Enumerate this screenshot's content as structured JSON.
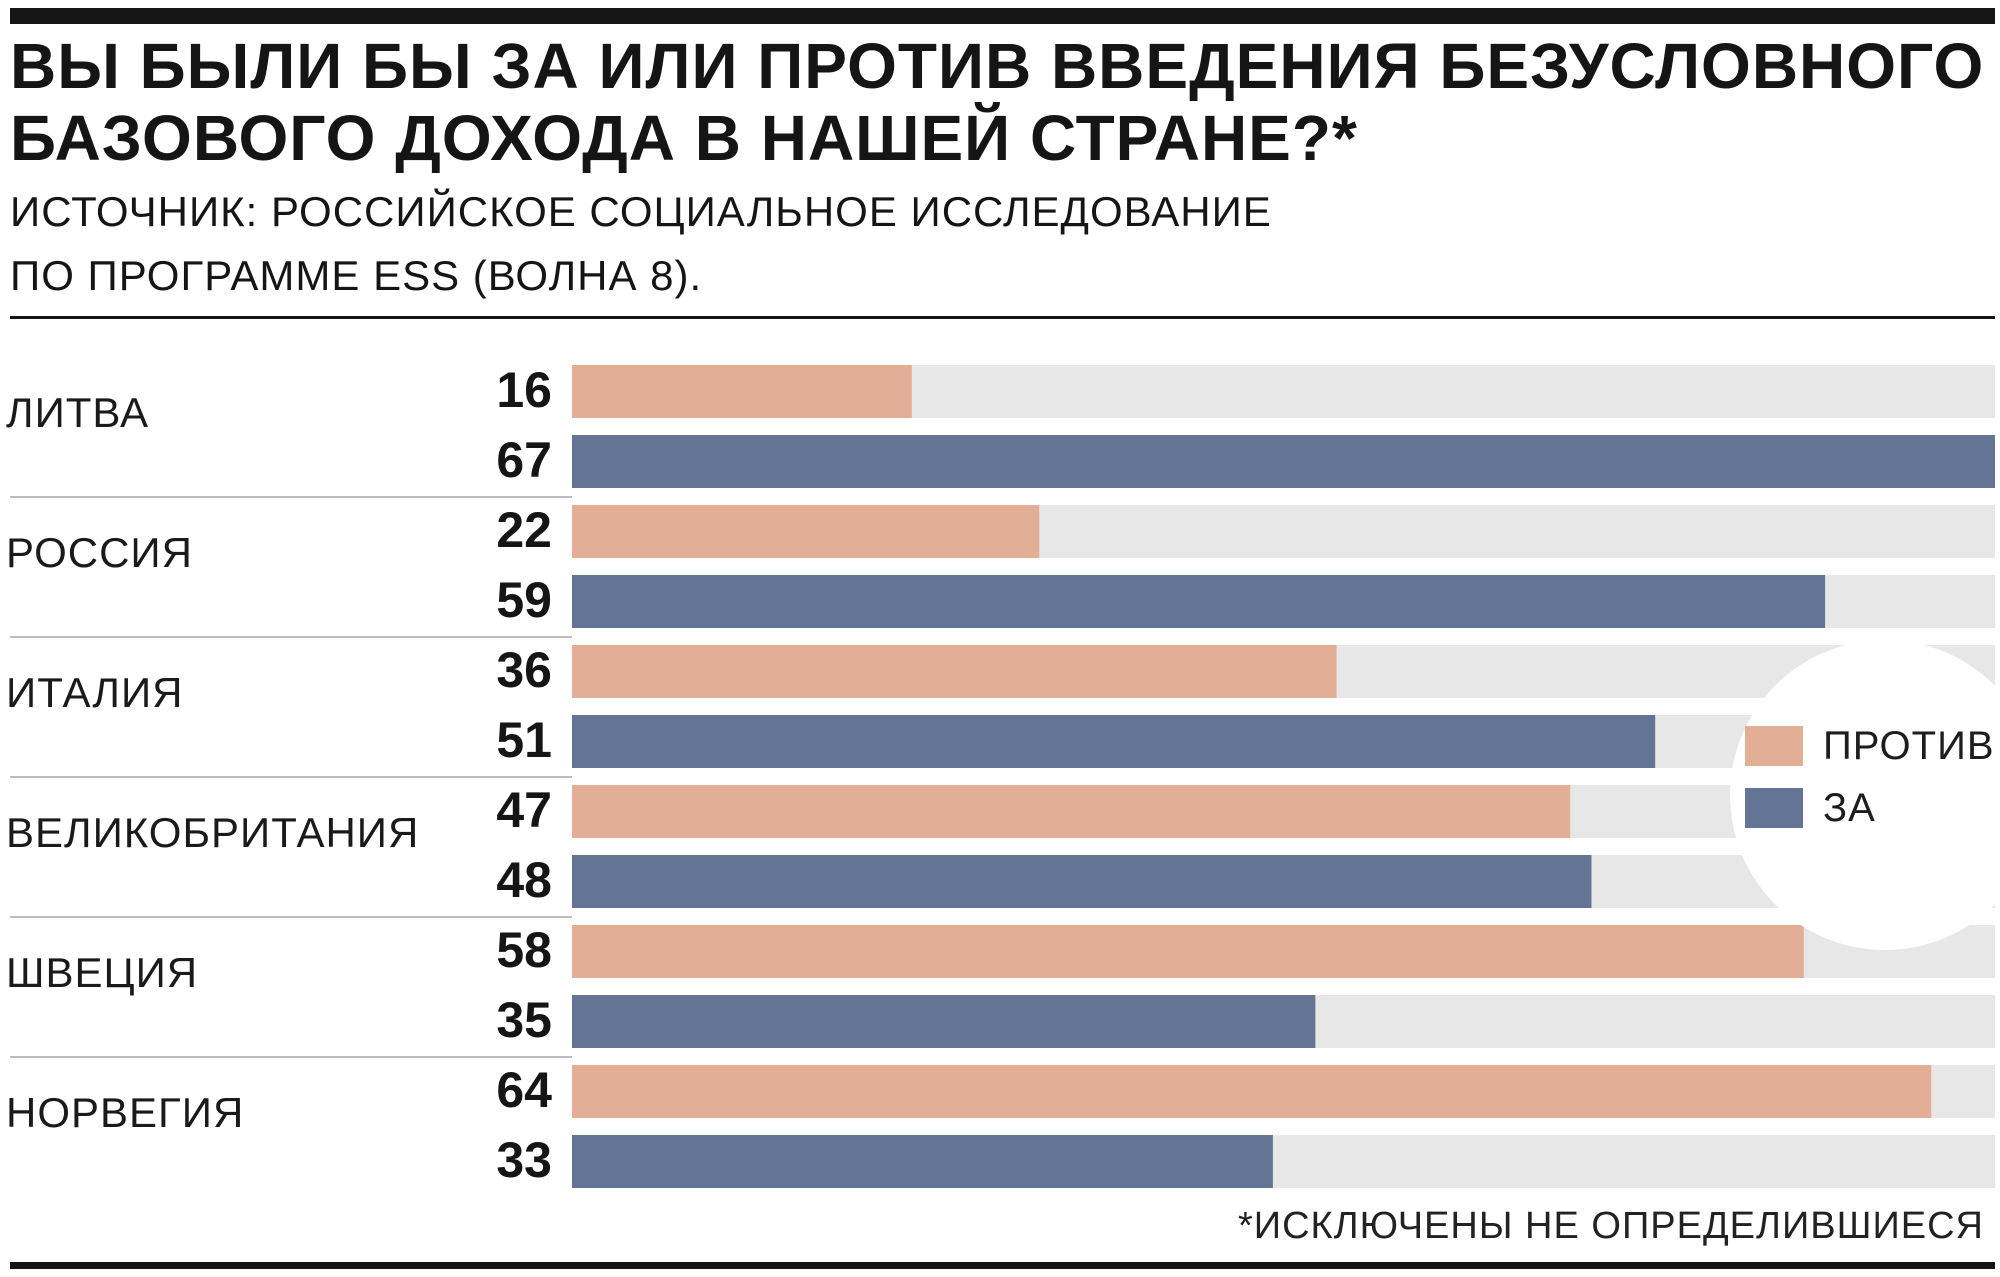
{
  "header": {
    "title_line1": "ВЫ БЫЛИ БЫ ЗА ИЛИ ПРОТИВ ВВЕДЕНИЯ БЕЗУСЛОВНОГО",
    "title_line2": "БАЗОВОГО ДОХОДА В НАШЕЙ СТРАНЕ?*",
    "source_line1": "ИСТОЧНИК: РОССИЙСКОЕ СОЦИАЛЬНОЕ ИССЛЕДОВАНИЕ",
    "source_line2": "ПО ПРОГРАММЕ ESS (ВОЛНА 8)."
  },
  "footnote": "*ИСКЛЮЧЕНЫ НЕ ОПРЕДЕЛИВШИЕСЯ",
  "legend": {
    "against_label": "ПРОТИВ",
    "for_label": "ЗА"
  },
  "colors": {
    "against": "#E2AE96",
    "for": "#637494",
    "track": "#E7E7E7",
    "separator": "#BDBDBD"
  },
  "chart_data": {
    "type": "bar",
    "orientation": "horizontal",
    "categories": [
      "ЛИТВА",
      "РОССИЯ",
      "ИТАЛИЯ",
      "ВЕЛИКОБРИТАНИЯ",
      "ШВЕЦИЯ",
      "НОРВЕГИЯ"
    ],
    "series": [
      {
        "name": "ПРОТИВ",
        "values": [
          16,
          22,
          36,
          47,
          58,
          64
        ]
      },
      {
        "name": "ЗА",
        "values": [
          67,
          59,
          51,
          48,
          35,
          33
        ]
      }
    ],
    "xlim": [
      0,
      67
    ],
    "grid": false,
    "legend_position": "right"
  }
}
